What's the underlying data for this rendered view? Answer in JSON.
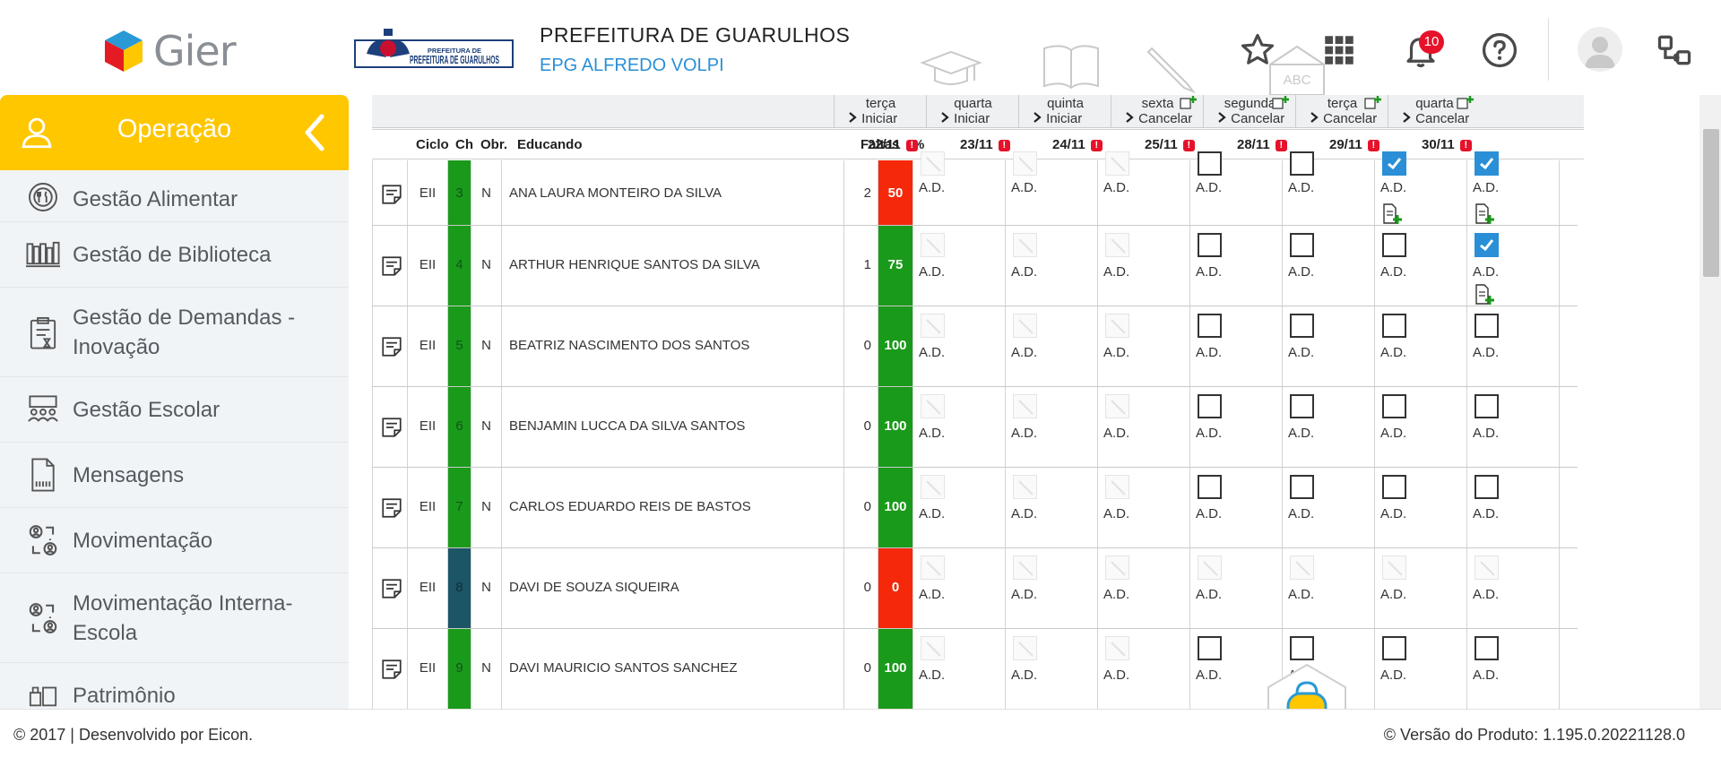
{
  "header": {
    "brand": "Gier",
    "city_logo_text": "PREFEITURA DE GUARULHOS",
    "org_title": "PREFEITURA DE GUARULHOS",
    "school": "EPG ALFREDO VOLPI",
    "ghost_icon_label": "ABC",
    "notification_count": "10"
  },
  "sidebar": {
    "title": "Operação",
    "items": [
      {
        "label": "Gestão Alimentar",
        "icon": "food-icon"
      },
      {
        "label": "Gestão de Biblioteca",
        "icon": "library-icon"
      },
      {
        "label": "Gestão de Demandas - Inovação",
        "icon": "clipboard-icon"
      },
      {
        "label": "Gestão Escolar",
        "icon": "classroom-icon"
      },
      {
        "label": "Mensagens",
        "icon": "message-icon"
      },
      {
        "label": "Movimentação",
        "icon": "people-transfer-icon"
      },
      {
        "label": "Movimentação Interna-Escola",
        "icon": "people-transfer-icon"
      },
      {
        "label": "Patrimônio",
        "icon": "patrimony-icon"
      }
    ]
  },
  "table": {
    "days": [
      {
        "name": "terça",
        "action": "Iniciar",
        "add_icon": false
      },
      {
        "name": "quarta",
        "action": "Iniciar",
        "add_icon": false
      },
      {
        "name": "quinta",
        "action": "Iniciar",
        "add_icon": false
      },
      {
        "name": "sexta",
        "action": "Cancelar",
        "add_icon": true
      },
      {
        "name": "segunda",
        "action": "Cancelar",
        "add_icon": true
      },
      {
        "name": "terça",
        "action": "Cancelar",
        "add_icon": true
      },
      {
        "name": "quarta",
        "action": "Cancelar",
        "add_icon": true
      }
    ],
    "columns": {
      "ciclo": "Ciclo",
      "ch": "Ch",
      "obr": "Obr.",
      "educando": "Educando",
      "faltas": "Faltas",
      "pct": "%"
    },
    "dates": [
      "22/11",
      "23/11",
      "24/11",
      "25/11",
      "28/11",
      "29/11",
      "30/11"
    ],
    "warn_glyph": "!",
    "cell_label": "A.D.",
    "students": [
      {
        "ciclo": "EII",
        "ch": "3",
        "obr": "N",
        "name": "ANA LAURA MONTEIRO DA SILVA",
        "faltas": "2",
        "pct": "50",
        "pct_color": "#f5280a",
        "ch_color": "#1a9a1a",
        "checks": [
          "none",
          "none",
          "none",
          "empty",
          "empty",
          "checked",
          "checked"
        ],
        "notes": [
          false,
          false,
          false,
          false,
          false,
          true,
          true
        ],
        "cut_top": true
      },
      {
        "ciclo": "EII",
        "ch": "4",
        "obr": "N",
        "name": "ARTHUR HENRIQUE SANTOS DA SILVA",
        "faltas": "1",
        "pct": "75",
        "pct_color": "#1a9a1a",
        "ch_color": "#1a9a1a",
        "checks": [
          "none",
          "none",
          "none",
          "empty",
          "empty",
          "empty",
          "checked"
        ],
        "notes": [
          false,
          false,
          false,
          false,
          false,
          false,
          true
        ],
        "cut_top": false
      },
      {
        "ciclo": "EII",
        "ch": "5",
        "obr": "N",
        "name": "BEATRIZ NASCIMENTO DOS SANTOS",
        "faltas": "0",
        "pct": "100",
        "pct_color": "#1a9a1a",
        "ch_color": "#1a9a1a",
        "checks": [
          "none",
          "none",
          "none",
          "empty",
          "empty",
          "empty",
          "empty"
        ],
        "notes": [
          false,
          false,
          false,
          false,
          false,
          false,
          false
        ],
        "cut_top": false
      },
      {
        "ciclo": "EII",
        "ch": "6",
        "obr": "N",
        "name": "BENJAMIN LUCCA DA SILVA SANTOS",
        "faltas": "0",
        "pct": "100",
        "pct_color": "#1a9a1a",
        "ch_color": "#1a9a1a",
        "checks": [
          "none",
          "none",
          "none",
          "empty",
          "empty",
          "empty",
          "empty"
        ],
        "notes": [
          false,
          false,
          false,
          false,
          false,
          false,
          false
        ],
        "cut_top": false
      },
      {
        "ciclo": "EII",
        "ch": "7",
        "obr": "N",
        "name": "CARLOS EDUARDO REIS DE BASTOS",
        "faltas": "0",
        "pct": "100",
        "pct_color": "#1a9a1a",
        "ch_color": "#1a9a1a",
        "checks": [
          "none",
          "none",
          "none",
          "empty",
          "empty",
          "empty",
          "empty"
        ],
        "notes": [
          false,
          false,
          false,
          false,
          false,
          false,
          false
        ],
        "cut_top": false
      },
      {
        "ciclo": "EII",
        "ch": "8",
        "obr": "N",
        "name": "DAVI DE SOUZA SIQUEIRA",
        "faltas": "0",
        "pct": "0",
        "pct_color": "#f5280a",
        "ch_color": "#1b5566",
        "checks": [
          "none",
          "none",
          "none",
          "none",
          "none",
          "none",
          "none"
        ],
        "notes": [
          false,
          false,
          false,
          false,
          false,
          false,
          false
        ],
        "cut_top": false
      },
      {
        "ciclo": "EII",
        "ch": "9",
        "obr": "N",
        "name": "DAVI MAURICIO SANTOS SANCHEZ",
        "faltas": "0",
        "pct": "100",
        "pct_color": "#1a9a1a",
        "ch_color": "#1a9a1a",
        "checks": [
          "none",
          "none",
          "none",
          "empty",
          "empty",
          "empty",
          "empty"
        ],
        "notes": [
          false,
          false,
          false,
          false,
          false,
          false,
          false
        ],
        "cut_top": false
      }
    ]
  },
  "footer": {
    "left": "© 2017 | Desenvolvido por Eicon.",
    "right": "© Versão do Produto: 1.195.0.20221128.0"
  },
  "colors": {
    "accent": "#ffc700",
    "link": "#2a8fd6",
    "green": "#1a9a1a",
    "red": "#f5280a",
    "alert": "#e5122a"
  }
}
